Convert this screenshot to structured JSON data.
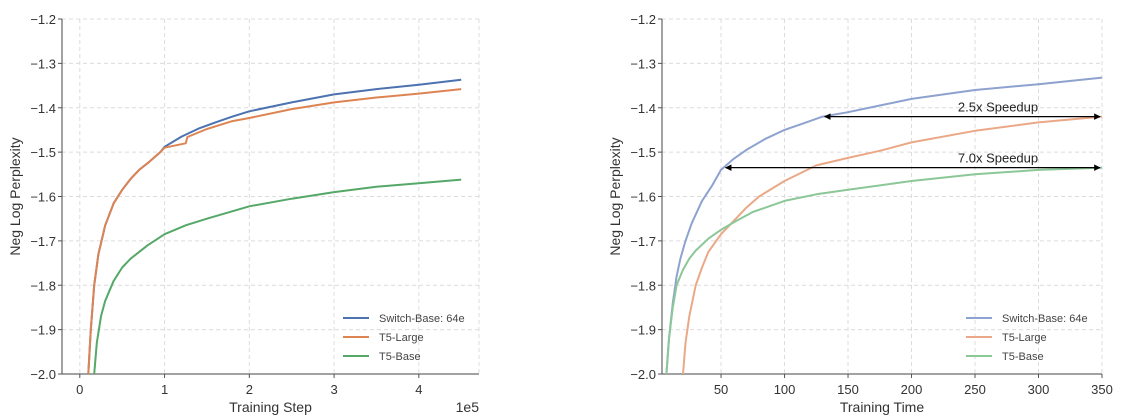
{
  "chart_data": [
    {
      "type": "line",
      "xlabel": "Training Step",
      "ylabel": "Neg Log Perplexity",
      "x_scale_note": "1e5",
      "xlim": [
        -0.21,
        4.71
      ],
      "ylim": [
        -2.0,
        -1.2
      ],
      "xticks": [
        0,
        1,
        2,
        3,
        4
      ],
      "xtick_labels": [
        "0",
        "1",
        "2",
        "3",
        "4"
      ],
      "yticks": [
        -1.2,
        -1.3,
        -1.4,
        -1.5,
        -1.6,
        -1.7,
        -1.8,
        -1.9,
        -2.0
      ],
      "ytick_labels": [
        "−1.2",
        "−1.3",
        "−1.4",
        "−1.5",
        "−1.6",
        "−1.7",
        "−1.8",
        "−1.9",
        "−2.0"
      ],
      "grid": true,
      "legend_position": "bottom-right",
      "series": [
        {
          "name": "Switch-Base: 64e",
          "color": "#4c72b0",
          "x": [
            0.1,
            0.13,
            0.17,
            0.22,
            0.3,
            0.4,
            0.5,
            0.6,
            0.7,
            0.8,
            0.95,
            1.0,
            1.2,
            1.4,
            1.6,
            1.8,
            2.0,
            2.5,
            3.0,
            3.5,
            4.0,
            4.5
          ],
          "y": [
            -2.0,
            -1.9,
            -1.8,
            -1.73,
            -1.665,
            -1.615,
            -1.585,
            -1.56,
            -1.54,
            -1.525,
            -1.5,
            -1.488,
            -1.465,
            -1.447,
            -1.433,
            -1.42,
            -1.408,
            -1.388,
            -1.37,
            -1.358,
            -1.348,
            -1.337
          ]
        },
        {
          "name": "T5-Large",
          "color": "#dd8452",
          "x": [
            0.1,
            0.13,
            0.17,
            0.22,
            0.3,
            0.4,
            0.5,
            0.6,
            0.7,
            0.8,
            0.95,
            1.0,
            1.25,
            1.27,
            1.5,
            1.8,
            2.0,
            2.5,
            3.0,
            3.5,
            4.0,
            4.5
          ],
          "y": [
            -2.0,
            -1.9,
            -1.8,
            -1.73,
            -1.665,
            -1.615,
            -1.585,
            -1.56,
            -1.54,
            -1.525,
            -1.5,
            -1.49,
            -1.48,
            -1.466,
            -1.448,
            -1.43,
            -1.423,
            -1.403,
            -1.388,
            -1.377,
            -1.368,
            -1.358
          ]
        },
        {
          "name": "T5-Base",
          "color": "#55a868",
          "x": [
            0.17,
            0.2,
            0.25,
            0.3,
            0.4,
            0.5,
            0.6,
            0.8,
            1.0,
            1.25,
            1.5,
            2.0,
            2.5,
            3.0,
            3.5,
            4.0,
            4.5
          ],
          "y": [
            -2.0,
            -1.93,
            -1.87,
            -1.835,
            -1.79,
            -1.76,
            -1.74,
            -1.71,
            -1.685,
            -1.665,
            -1.65,
            -1.622,
            -1.605,
            -1.59,
            -1.578,
            -1.57,
            -1.562
          ]
        }
      ]
    },
    {
      "type": "line",
      "xlabel": "Training Time",
      "ylabel": "Neg Log Perplexity",
      "xlim": [
        3.5,
        350
      ],
      "ylim": [
        -2.0,
        -1.2
      ],
      "xticks": [
        50,
        100,
        150,
        200,
        250,
        300,
        350
      ],
      "xtick_labels": [
        "50",
        "100",
        "150",
        "200",
        "250",
        "300",
        "350"
      ],
      "yticks": [
        -1.2,
        -1.3,
        -1.4,
        -1.5,
        -1.6,
        -1.7,
        -1.8,
        -1.9,
        -2.0
      ],
      "ytick_labels": [
        "−1.2",
        "−1.3",
        "−1.4",
        "−1.5",
        "−1.6",
        "−1.7",
        "−1.8",
        "−1.9",
        "−2.0"
      ],
      "grid": true,
      "legend_position": "bottom-right",
      "series": [
        {
          "name": "Switch-Base: 64e",
          "color": "#8ea2cf",
          "x": [
            7,
            9,
            12,
            15,
            18,
            22,
            27,
            35,
            43,
            50,
            60,
            70,
            85,
            100,
            115,
            130,
            150,
            175,
            200,
            250,
            300,
            350
          ],
          "y": [
            -2.0,
            -1.92,
            -1.84,
            -1.78,
            -1.74,
            -1.7,
            -1.66,
            -1.61,
            -1.575,
            -1.54,
            -1.515,
            -1.495,
            -1.47,
            -1.45,
            -1.435,
            -1.42,
            -1.41,
            -1.395,
            -1.38,
            -1.36,
            -1.347,
            -1.332
          ]
        },
        {
          "name": "T5-Large",
          "color": "#eba887",
          "x": [
            20,
            22,
            25,
            30,
            35,
            40,
            50,
            60,
            70,
            80,
            100,
            125,
            150,
            175,
            200,
            250,
            300,
            350
          ],
          "y": [
            -2.0,
            -1.93,
            -1.87,
            -1.8,
            -1.76,
            -1.725,
            -1.685,
            -1.655,
            -1.625,
            -1.6,
            -1.565,
            -1.53,
            -1.513,
            -1.497,
            -1.478,
            -1.452,
            -1.433,
            -1.42
          ]
        },
        {
          "name": "T5-Base",
          "color": "#8cc798",
          "x": [
            7,
            9,
            12,
            15,
            20,
            25,
            30,
            40,
            50,
            62,
            75,
            100,
            125,
            150,
            200,
            250,
            300,
            350
          ],
          "y": [
            -2.0,
            -1.92,
            -1.85,
            -1.8,
            -1.765,
            -1.74,
            -1.722,
            -1.695,
            -1.675,
            -1.655,
            -1.635,
            -1.61,
            -1.595,
            -1.585,
            -1.565,
            -1.55,
            -1.54,
            -1.535
          ]
        }
      ],
      "annotations": [
        {
          "text": "2.5x Speedup",
          "y": -1.42,
          "x_from": 130,
          "x_to": 350
        },
        {
          "text": "7.0x Speedup",
          "y": -1.535,
          "x_from": 52,
          "x_to": 350
        }
      ]
    }
  ]
}
